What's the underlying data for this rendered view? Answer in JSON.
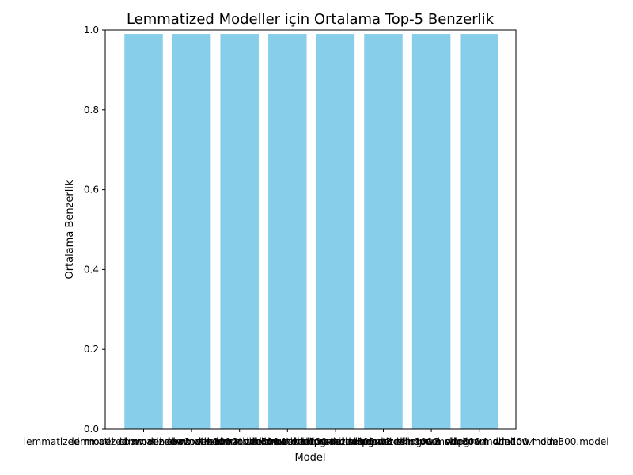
{
  "chart_data": {
    "type": "bar",
    "title": "Lemmatized Modeller için Ortalama Top-5 Benzerlik",
    "xlabel": "Model",
    "ylabel": "Ortalama Benzerlik",
    "categories": [
      "lemmatized_model_cbow_window2_dim100.model",
      "lemmatized_model_cbow_window2_dim300.model",
      "lemmatized_model_cbow_window4_dim100.model",
      "lemmatized_model_cbow_window4_dim300.model",
      "lemmatized_model_skipgram_window2_dim100.model",
      "lemmatized_model_skipgram_window2_dim300.model",
      "lemmatized_model_skipgram_window4_dim100.model",
      "lemmatized_model_skipgram_window4_dim300.model"
    ],
    "values": [
      0.99,
      0.99,
      0.99,
      0.99,
      0.99,
      0.99,
      0.99,
      0.99
    ],
    "ylim": [
      0,
      1.0
    ],
    "yticks": [
      "0.0",
      "0.2",
      "0.4",
      "0.6",
      "0.8",
      "1.0"
    ],
    "grid": false,
    "colors": {
      "bar": "#87CEEB",
      "axis": "#000000"
    }
  }
}
